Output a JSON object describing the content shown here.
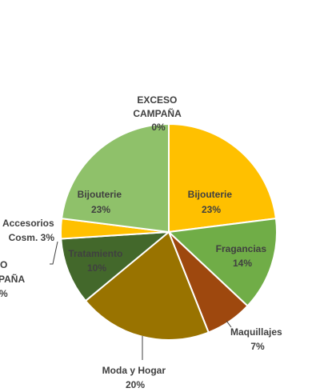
{
  "chart_data": {
    "type": "pie",
    "title": "",
    "slices": [
      {
        "name": "Bijouterie",
        "value": 23,
        "label": "Bijouterie",
        "pct": "23%",
        "color": "#FFC000"
      },
      {
        "name": "Fragancias",
        "value": 14,
        "label": "Fragancias",
        "pct": "14%",
        "color": "#70AD47"
      },
      {
        "name": "Maquillajes",
        "value": 7,
        "label": "Maquillajes",
        "pct": "7%",
        "color": "#9E480E"
      },
      {
        "name": "Moda y Hogar",
        "value": 20,
        "label": "Moda y Hogar",
        "pct": "20%",
        "color": "#997300"
      },
      {
        "name": "Tratamiento",
        "value": 10,
        "label": "Tratamiento",
        "pct": "10%",
        "color": "#43682B"
      },
      {
        "name": "EXCESO CAMPAÑA",
        "value": 0,
        "label_lines": [
          "O",
          "PAÑA",
          "%"
        ],
        "color": "#FFFFFF"
      },
      {
        "name": "Accesorios Cosm.",
        "value": 3,
        "label_lines": [
          "Accesorios",
          "Cosm. 3%"
        ],
        "color": "#FFC000"
      },
      {
        "name": "Bijouterie",
        "value": 23,
        "label": "Bijouterie",
        "pct": "23%",
        "color": "#8FC16A"
      },
      {
        "name": "EXCESO CAMPAÑA",
        "value": 0,
        "label_lines": [
          "EXCESO",
          "CAMPAÑA",
          "0%"
        ],
        "color": "#FFFFFF"
      }
    ]
  }
}
